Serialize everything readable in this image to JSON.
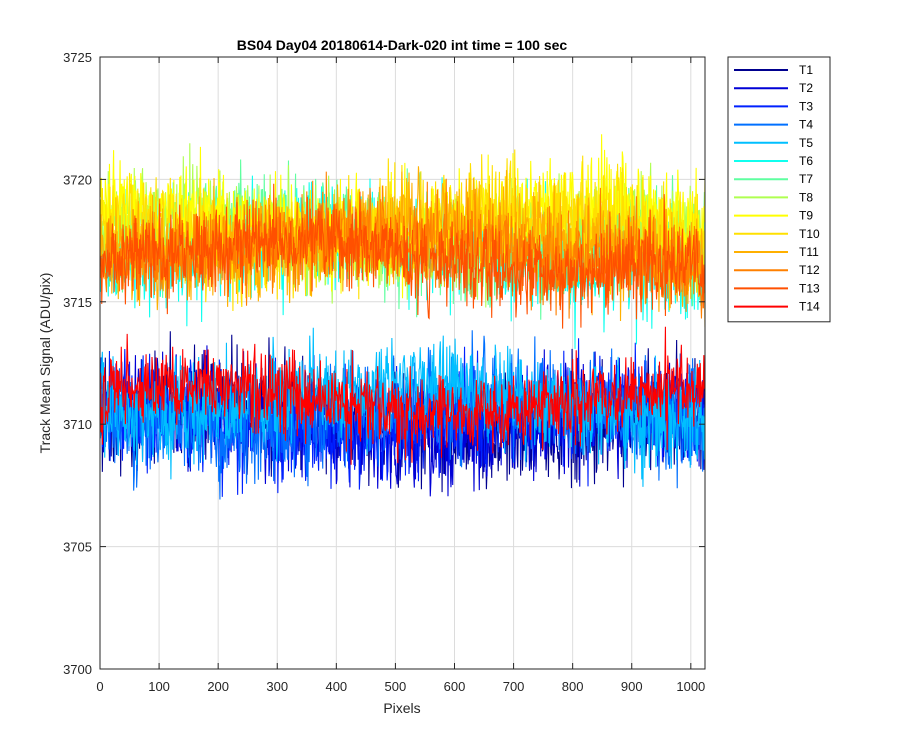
{
  "chart_data": {
    "type": "line",
    "title": "BS04 Day04 20180614-Dark-020 int time = 100 sec",
    "xlabel": "Pixels",
    "ylabel": "Track Mean Signal (ADU/pix)",
    "xlim": [
      0,
      1024
    ],
    "ylim": [
      3700,
      3725
    ],
    "xticks": [
      0,
      100,
      200,
      300,
      400,
      500,
      600,
      700,
      800,
      900,
      1000
    ],
    "yticks": [
      3700,
      3705,
      3710,
      3715,
      3720,
      3725
    ],
    "grid": true,
    "legend_position": "outside top-right",
    "x_points": 1024,
    "series": [
      {
        "name": "T1",
        "color": "#00008f",
        "mean": 3710.2,
        "noise_sd": 1.5
      },
      {
        "name": "T2",
        "color": "#0000d6",
        "mean": 3710.0,
        "noise_sd": 1.5
      },
      {
        "name": "T3",
        "color": "#0021ff",
        "mean": 3710.3,
        "noise_sd": 1.5
      },
      {
        "name": "T4",
        "color": "#0070ff",
        "mean": 3710.4,
        "noise_sd": 1.5
      },
      {
        "name": "T5",
        "color": "#00bfff",
        "mean": 3711.0,
        "noise_sd": 1.4
      },
      {
        "name": "T6",
        "color": "#10ffef",
        "mean": 3717.2,
        "noise_sd": 1.5
      },
      {
        "name": "T7",
        "color": "#5fffa0",
        "mean": 3717.6,
        "noise_sd": 1.4
      },
      {
        "name": "T8",
        "color": "#afff50",
        "mean": 3717.8,
        "noise_sd": 1.4
      },
      {
        "name": "T9",
        "color": "#ffff00",
        "mean": 3718.3,
        "noise_sd": 1.4
      },
      {
        "name": "T10",
        "color": "#ffe000",
        "mean": 3718.0,
        "noise_sd": 1.4
      },
      {
        "name": "T11",
        "color": "#ffb000",
        "mean": 3717.5,
        "noise_sd": 1.4
      },
      {
        "name": "T12",
        "color": "#ff8000",
        "mean": 3717.2,
        "noise_sd": 1.3
      },
      {
        "name": "T13",
        "color": "#ff5000",
        "mean": 3716.8,
        "noise_sd": 1.2
      },
      {
        "name": "T14",
        "color": "#ff0000",
        "mean": 3711.0,
        "noise_sd": 1.1
      }
    ]
  }
}
